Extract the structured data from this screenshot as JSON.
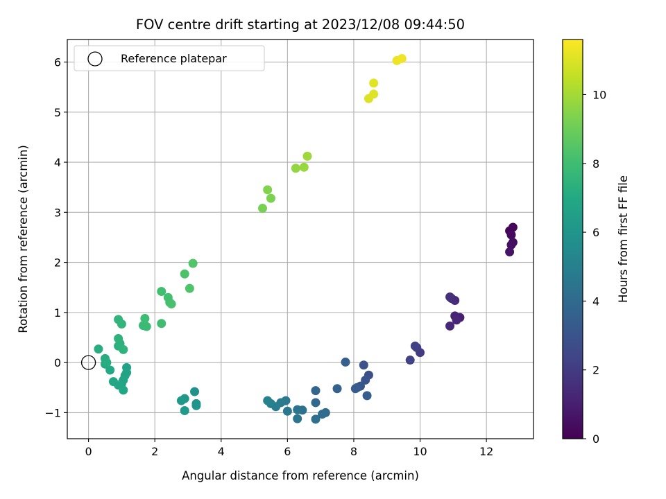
{
  "chart_data": {
    "type": "scatter",
    "title": "FOV centre drift starting at 2023/12/08 09:44:50",
    "xlabel": "Angular distance from reference (arcmin)",
    "ylabel": "Rotation from reference (arcmin)",
    "colorbar_label": "Hours from first FF file",
    "xlim": [
      -0.64,
      13.42
    ],
    "ylim": [
      -1.52,
      6.45
    ],
    "xticks": [
      0,
      2,
      4,
      6,
      8,
      10,
      12
    ],
    "yticks": [
      -1,
      0,
      1,
      2,
      3,
      4,
      5,
      6
    ],
    "colorbar_range": [
      0,
      11.6
    ],
    "colorbar_ticks": [
      0,
      2,
      4,
      6,
      8,
      10
    ],
    "colormap": "viridis",
    "grid": true,
    "legend": {
      "placement": "top-left",
      "entries": [
        "Reference platepar"
      ]
    },
    "reference_point": {
      "name": "Reference platepar",
      "x": 0,
      "y": 0
    },
    "points": [
      {
        "x": 12.7,
        "y": 2.63,
        "t": 0.1
      },
      {
        "x": 12.8,
        "y": 2.7,
        "t": 0.2
      },
      {
        "x": 12.75,
        "y": 2.55,
        "t": 0.3
      },
      {
        "x": 12.8,
        "y": 2.4,
        "t": 0.4
      },
      {
        "x": 12.75,
        "y": 2.35,
        "t": 0.5
      },
      {
        "x": 12.7,
        "y": 2.21,
        "t": 0.6
      },
      {
        "x": 11.2,
        "y": 0.9,
        "t": 1.0
      },
      {
        "x": 11.05,
        "y": 0.93,
        "t": 1.1
      },
      {
        "x": 11.1,
        "y": 0.85,
        "t": 1.2
      },
      {
        "x": 10.9,
        "y": 0.73,
        "t": 1.3
      },
      {
        "x": 11.05,
        "y": 1.24,
        "t": 1.4
      },
      {
        "x": 10.95,
        "y": 1.28,
        "t": 1.5
      },
      {
        "x": 10.9,
        "y": 1.31,
        "t": 1.6
      },
      {
        "x": 10.0,
        "y": 0.2,
        "t": 2.0
      },
      {
        "x": 9.9,
        "y": 0.3,
        "t": 2.1
      },
      {
        "x": 9.85,
        "y": 0.33,
        "t": 2.2
      },
      {
        "x": 9.7,
        "y": 0.05,
        "t": 2.3
      },
      {
        "x": 8.45,
        "y": -0.25,
        "t": 2.8
      },
      {
        "x": 8.3,
        "y": -0.05,
        "t": 2.9
      },
      {
        "x": 8.35,
        "y": -0.35,
        "t": 3.0
      },
      {
        "x": 8.2,
        "y": -0.47,
        "t": 3.1
      },
      {
        "x": 8.1,
        "y": -0.5,
        "t": 3.2
      },
      {
        "x": 8.05,
        "y": -0.52,
        "t": 3.3
      },
      {
        "x": 8.4,
        "y": -0.66,
        "t": 3.4
      },
      {
        "x": 7.75,
        "y": 0.01,
        "t": 3.5
      },
      {
        "x": 7.5,
        "y": -0.52,
        "t": 3.6
      },
      {
        "x": 6.85,
        "y": -0.56,
        "t": 3.8
      },
      {
        "x": 6.85,
        "y": -0.8,
        "t": 3.9
      },
      {
        "x": 7.15,
        "y": -1.0,
        "t": 4.0
      },
      {
        "x": 7.05,
        "y": -1.03,
        "t": 4.1
      },
      {
        "x": 6.85,
        "y": -1.13,
        "t": 4.2
      },
      {
        "x": 6.45,
        "y": -0.95,
        "t": 4.3
      },
      {
        "x": 6.3,
        "y": -0.94,
        "t": 4.4
      },
      {
        "x": 6.3,
        "y": -1.12,
        "t": 4.5
      },
      {
        "x": 6.0,
        "y": -0.97,
        "t": 4.6
      },
      {
        "x": 5.95,
        "y": -0.76,
        "t": 4.7
      },
      {
        "x": 5.8,
        "y": -0.8,
        "t": 4.8
      },
      {
        "x": 5.65,
        "y": -0.88,
        "t": 4.9
      },
      {
        "x": 5.5,
        "y": -0.82,
        "t": 5.0
      },
      {
        "x": 5.4,
        "y": -0.76,
        "t": 5.1
      },
      {
        "x": 3.2,
        "y": -0.58,
        "t": 5.8
      },
      {
        "x": 3.25,
        "y": -0.82,
        "t": 5.9
      },
      {
        "x": 3.25,
        "y": -0.86,
        "t": 6.0
      },
      {
        "x": 2.9,
        "y": -0.72,
        "t": 6.1
      },
      {
        "x": 2.8,
        "y": -0.76,
        "t": 6.2
      },
      {
        "x": 2.9,
        "y": -0.96,
        "t": 6.3
      },
      {
        "x": 1.15,
        "y": -0.1,
        "t": 6.6
      },
      {
        "x": 1.15,
        "y": -0.2,
        "t": 6.65
      },
      {
        "x": 1.1,
        "y": -0.26,
        "t": 6.7
      },
      {
        "x": 1.05,
        "y": -0.35,
        "t": 6.75
      },
      {
        "x": 1.0,
        "y": -0.42,
        "t": 6.8
      },
      {
        "x": 0.9,
        "y": -0.45,
        "t": 6.85
      },
      {
        "x": 1.05,
        "y": -0.55,
        "t": 6.9
      },
      {
        "x": 0.75,
        "y": -0.38,
        "t": 6.95
      },
      {
        "x": 0.65,
        "y": -0.15,
        "t": 7.0
      },
      {
        "x": 0.5,
        "y": -0.03,
        "t": 7.05
      },
      {
        "x": 0.5,
        "y": 0.08,
        "t": 7.1
      },
      {
        "x": 0.55,
        "y": 0.0,
        "t": 7.15
      },
      {
        "x": 0.3,
        "y": 0.27,
        "t": 7.2
      },
      {
        "x": 0.9,
        "y": 0.33,
        "t": 7.3
      },
      {
        "x": 0.95,
        "y": 0.38,
        "t": 7.35
      },
      {
        "x": 0.9,
        "y": 0.48,
        "t": 7.4
      },
      {
        "x": 1.05,
        "y": 0.26,
        "t": 7.45
      },
      {
        "x": 0.9,
        "y": 0.86,
        "t": 7.5
      },
      {
        "x": 1.0,
        "y": 0.77,
        "t": 7.55
      },
      {
        "x": 1.65,
        "y": 0.74,
        "t": 7.8
      },
      {
        "x": 1.75,
        "y": 0.72,
        "t": 7.85
      },
      {
        "x": 1.7,
        "y": 0.88,
        "t": 7.9
      },
      {
        "x": 2.2,
        "y": 0.78,
        "t": 8.0
      },
      {
        "x": 2.2,
        "y": 1.42,
        "t": 8.05
      },
      {
        "x": 2.4,
        "y": 1.3,
        "t": 8.1
      },
      {
        "x": 2.45,
        "y": 1.2,
        "t": 8.15
      },
      {
        "x": 2.5,
        "y": 1.17,
        "t": 8.2
      },
      {
        "x": 2.9,
        "y": 1.77,
        "t": 8.3
      },
      {
        "x": 3.05,
        "y": 1.48,
        "t": 8.35
      },
      {
        "x": 3.15,
        "y": 1.98,
        "t": 8.4
      },
      {
        "x": 5.25,
        "y": 3.08,
        "t": 9.2
      },
      {
        "x": 5.5,
        "y": 3.28,
        "t": 9.3
      },
      {
        "x": 5.4,
        "y": 3.45,
        "t": 9.4
      },
      {
        "x": 6.25,
        "y": 3.88,
        "t": 9.7
      },
      {
        "x": 6.5,
        "y": 3.9,
        "t": 9.8
      },
      {
        "x": 6.6,
        "y": 4.12,
        "t": 9.9
      },
      {
        "x": 8.45,
        "y": 5.27,
        "t": 11.0
      },
      {
        "x": 8.6,
        "y": 5.36,
        "t": 11.05
      },
      {
        "x": 8.6,
        "y": 5.58,
        "t": 11.1
      },
      {
        "x": 9.3,
        "y": 6.03,
        "t": 11.3
      },
      {
        "x": 9.45,
        "y": 6.07,
        "t": 11.35
      }
    ]
  }
}
